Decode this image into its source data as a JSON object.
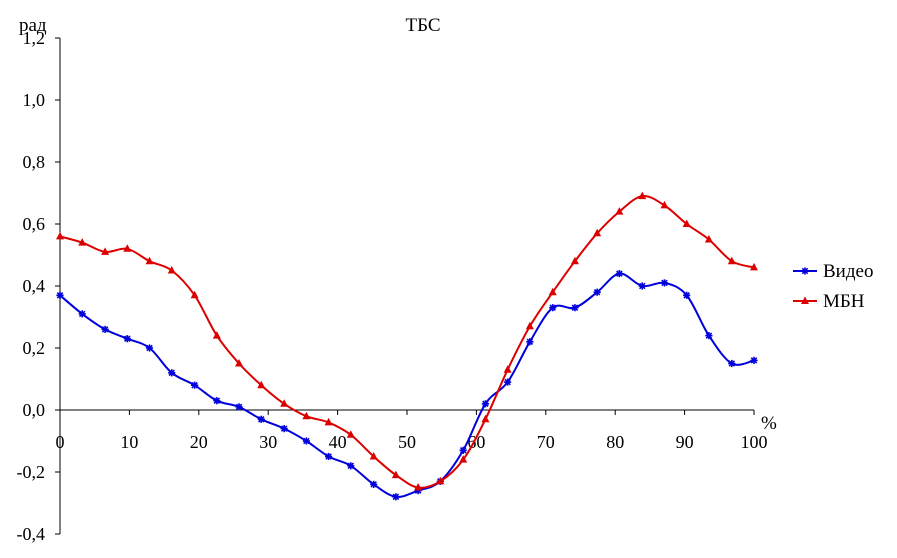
{
  "chart_data": {
    "type": "line",
    "title": "ТБС",
    "ylabel": "рад",
    "xlabel": "%",
    "xlim": [
      0,
      100
    ],
    "ylim": [
      -0.4,
      1.2
    ],
    "xticks": [
      "0",
      "10",
      "20",
      "30",
      "40",
      "50",
      "60",
      "70",
      "80",
      "90",
      "100"
    ],
    "yticks": [
      "1,2",
      "1,0",
      "0,8",
      "0,6",
      "0,4",
      "0,2",
      "0,0",
      "-0,2",
      "-0,4"
    ],
    "grid": false,
    "legend_position": "right",
    "series": [
      {
        "name": "Видео",
        "color": "#0000dd",
        "marker": "star",
        "x": [
          0,
          3.2,
          6.5,
          9.7,
          12.9,
          16.1,
          19.4,
          22.6,
          25.8,
          29.0,
          32.3,
          35.5,
          38.7,
          41.9,
          45.2,
          48.4,
          51.6,
          54.8,
          58.1,
          61.3,
          64.5,
          67.7,
          71.0,
          74.2,
          77.4,
          80.6,
          83.9,
          87.1,
          90.3,
          93.5,
          96.8,
          100
        ],
        "values": [
          0.37,
          0.31,
          0.26,
          0.23,
          0.2,
          0.12,
          0.08,
          0.03,
          0.01,
          -0.03,
          -0.06,
          -0.1,
          -0.15,
          -0.18,
          -0.24,
          -0.28,
          -0.26,
          -0.23,
          -0.13,
          0.02,
          0.09,
          0.22,
          0.33,
          0.33,
          0.38,
          0.44,
          0.4,
          0.41,
          0.37,
          0.24,
          0.15,
          0.16
        ]
      },
      {
        "name": "МБН",
        "color": "#dd0000",
        "marker": "triangle",
        "x": [
          0,
          3.2,
          6.5,
          9.7,
          12.9,
          16.1,
          19.4,
          22.6,
          25.8,
          29.0,
          32.3,
          35.5,
          38.7,
          41.9,
          45.2,
          48.4,
          51.6,
          54.8,
          58.1,
          61.3,
          64.5,
          67.7,
          71.0,
          74.2,
          77.4,
          80.6,
          83.9,
          87.1,
          90.3,
          93.5,
          96.8,
          100
        ],
        "values": [
          0.56,
          0.54,
          0.51,
          0.52,
          0.48,
          0.45,
          0.37,
          0.24,
          0.15,
          0.08,
          0.02,
          -0.02,
          -0.04,
          -0.08,
          -0.15,
          -0.21,
          -0.25,
          -0.23,
          -0.16,
          -0.03,
          0.13,
          0.27,
          0.38,
          0.48,
          0.57,
          0.64,
          0.69,
          0.66,
          0.6,
          0.55,
          0.48,
          0.46
        ]
      }
    ]
  }
}
